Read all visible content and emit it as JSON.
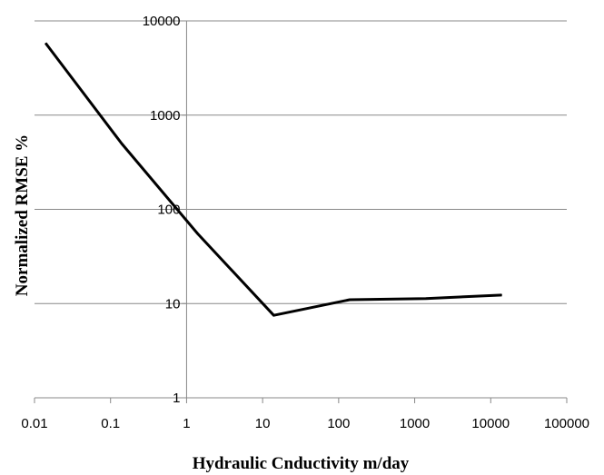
{
  "chart_data": {
    "type": "line",
    "title": "",
    "xlabel": "Hydraulic Cnductivity m/day",
    "ylabel": "Normalized RMSE %",
    "x_scale": "log",
    "y_scale": "log",
    "xlim": [
      0.01,
      100000
    ],
    "ylim": [
      1,
      10000
    ],
    "x_ticks": [
      "0.01",
      "0.1",
      "1",
      "10",
      "100",
      "1000",
      "10000",
      "100000"
    ],
    "y_ticks": [
      "1",
      "10",
      "100",
      "1000",
      "10000"
    ],
    "grid": "horizontal",
    "legend": "none",
    "series": [
      {
        "x": [
          0.014,
          0.14,
          1.4,
          14,
          140,
          1400,
          14000
        ],
        "y": [
          5800,
          500,
          55,
          7.5,
          11,
          11.3,
          12.3
        ],
        "color": "#000000"
      }
    ]
  }
}
